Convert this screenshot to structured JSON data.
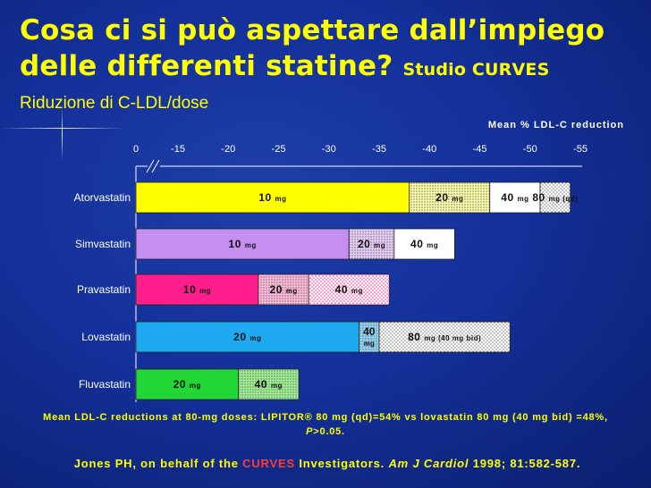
{
  "title": {
    "line1": "Cosa ci si può aspettare dall’impiego",
    "line2": "delle differenti statine?",
    "line2_small": "Studio CURVES"
  },
  "subtitle": "Riduzione di C-LDL/dose",
  "footnote": {
    "line1": "Mean LDL-C reductions at 80-mg doses: LIPITOR® 80 mg (qd)=54% vs lovastatin 80 mg (40 mg bid) =48%,",
    "p_italic": "P",
    "p_rest": ">0.05."
  },
  "citation": {
    "part1": "Jones PH, on behalf of the ",
    "highlight": "CURVES",
    "part2": " Investigators. ",
    "journal": "Am J Cardiol",
    "part3": " 1998; 81:582-587."
  },
  "chart_data": {
    "type": "bar",
    "orientation": "horizontal",
    "stacked": true,
    "xlabel": "Mean % LDL-C reduction",
    "xlim": [
      0,
      -55
    ],
    "xticks": [
      "0",
      "-15",
      "-20",
      "-25",
      "-30",
      "-35",
      "-40",
      "-45",
      "-50",
      "-55"
    ],
    "axis_break_after_zero": true,
    "categories": [
      "Atorvastatin",
      "Simvastatin",
      "Pravastatin",
      "Lovastatin",
      "Fluvastatin"
    ],
    "bars": [
      {
        "drug": "Atorvastatin",
        "segments": [
          {
            "dose": "10",
            "unit": "mg",
            "end": -38,
            "color": "#ffff00",
            "pattern": "solid"
          },
          {
            "dose": "20",
            "unit": "mg",
            "end": -46,
            "color": "#ffffa8",
            "pattern": "dots"
          },
          {
            "dose": "40",
            "unit": "mg",
            "end": -51,
            "color": "#ffffff",
            "pattern": "solid"
          },
          {
            "dose": "80",
            "unit": "mg",
            "note": "(qd)",
            "end": -54,
            "color": "#ffffff",
            "pattern": "dots-fine"
          }
        ]
      },
      {
        "drug": "Simvastatin",
        "segments": [
          {
            "dose": "10",
            "unit": "mg",
            "end": -32,
            "color": "#c68ef0",
            "pattern": "solid"
          },
          {
            "dose": "20",
            "unit": "mg",
            "end": -36.5,
            "color": "#e6cdf7",
            "pattern": "dots"
          },
          {
            "dose": "40",
            "unit": "mg",
            "end": -42.5,
            "color": "#ffffff",
            "pattern": "solid"
          }
        ]
      },
      {
        "drug": "Pravastatin",
        "segments": [
          {
            "dose": "10",
            "unit": "mg",
            "end": -23,
            "color": "#ff1e8c",
            "pattern": "solid"
          },
          {
            "dose": "20",
            "unit": "mg",
            "end": -28,
            "color": "#ffb8d8",
            "pattern": "dots"
          },
          {
            "dose": "40",
            "unit": "mg",
            "end": -36,
            "color": "#ffffff",
            "pattern": "dots-pink"
          }
        ]
      },
      {
        "drug": "Lovastatin",
        "segments": [
          {
            "dose": "20",
            "unit": "mg",
            "end": -33,
            "color": "#1eaaf0",
            "pattern": "solid"
          },
          {
            "dose": "40",
            "unit": "mg",
            "end": -35,
            "color": "#8fd4f5",
            "pattern": "dots"
          },
          {
            "dose": "80",
            "unit": "mg",
            "note": "(40 mg bid)",
            "end": -48,
            "color": "#ffffff",
            "pattern": "dots-fine"
          }
        ]
      },
      {
        "drug": "Fluvastatin",
        "segments": [
          {
            "dose": "20",
            "unit": "mg",
            "end": -21,
            "color": "#22d636",
            "pattern": "solid"
          },
          {
            "dose": "40",
            "unit": "mg",
            "end": -27,
            "color": "#9df08f",
            "pattern": "dots"
          }
        ]
      }
    ]
  }
}
